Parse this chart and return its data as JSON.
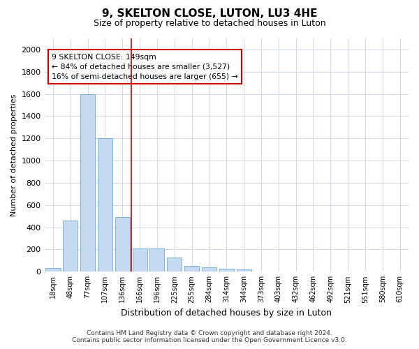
{
  "title": "9, SKELTON CLOSE, LUTON, LU3 4HE",
  "subtitle": "Size of property relative to detached houses in Luton",
  "xlabel": "Distribution of detached houses by size in Luton",
  "ylabel": "Number of detached properties",
  "categories": [
    "18sqm",
    "48sqm",
    "77sqm",
    "107sqm",
    "136sqm",
    "166sqm",
    "196sqm",
    "225sqm",
    "255sqm",
    "284sqm",
    "314sqm",
    "344sqm",
    "373sqm",
    "403sqm",
    "432sqm",
    "462sqm",
    "492sqm",
    "521sqm",
    "551sqm",
    "580sqm",
    "610sqm"
  ],
  "values": [
    35,
    460,
    1600,
    1200,
    490,
    210,
    210,
    130,
    50,
    40,
    25,
    18,
    0,
    0,
    0,
    0,
    0,
    0,
    0,
    0,
    0
  ],
  "bar_color": "#c5d9f0",
  "bar_edgecolor": "#6aaad4",
  "vline_index": 4.5,
  "vline_color": "#cc0000",
  "annotation_line1": "9 SKELTON CLOSE: 149sqm",
  "annotation_line2": "← 84% of detached houses are smaller (3,527)",
  "annotation_line3": "16% of semi-detached houses are larger (655) →",
  "annotation_box_color": "#ffffff",
  "annotation_box_edgecolor": "#cc0000",
  "ylim": [
    0,
    2100
  ],
  "yticks": [
    0,
    200,
    400,
    600,
    800,
    1000,
    1200,
    1400,
    1600,
    1800,
    2000
  ],
  "footer_line1": "Contains HM Land Registry data © Crown copyright and database right 2024.",
  "footer_line2": "Contains public sector information licensed under the Open Government Licence v3.0.",
  "bg_color": "#ffffff",
  "plot_bg_color": "#ffffff",
  "grid_color": "#d0d8e8"
}
